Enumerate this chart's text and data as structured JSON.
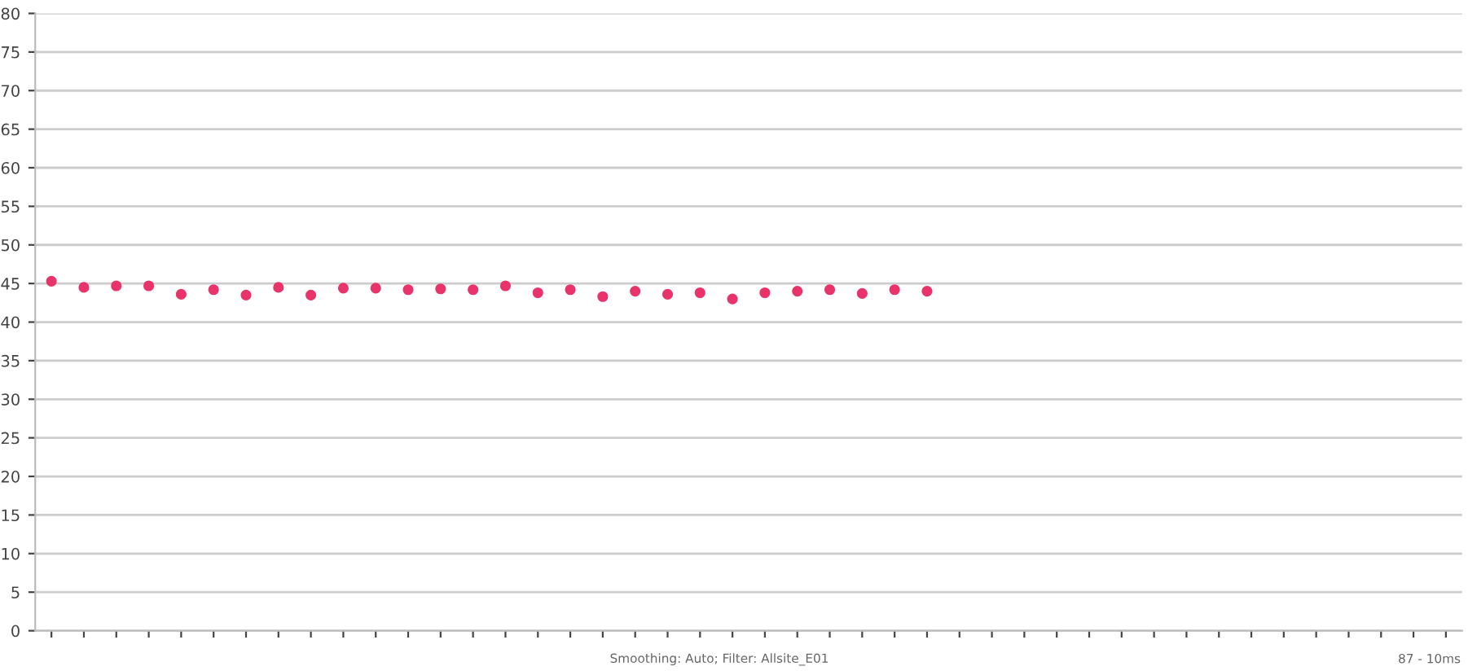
{
  "chart_data": {
    "type": "scatter",
    "categories": [
      null,
      null,
      null,
      null,
      null,
      null,
      null,
      null,
      null,
      null,
      null,
      null,
      null,
      null,
      null,
      null,
      null,
      null,
      null,
      null,
      null,
      null,
      null,
      null,
      null,
      null,
      null,
      null,
      null,
      null,
      null,
      null,
      null,
      null,
      null,
      null,
      null,
      null,
      null,
      null,
      null,
      null,
      null,
      null
    ],
    "series": [
      {
        "color": "#e8336b",
        "values": [
          45.3,
          44.5,
          44.7,
          44.7,
          43.6,
          44.2,
          43.5,
          44.5,
          43.5,
          44.4,
          44.4,
          44.2,
          44.3,
          44.2,
          44.7,
          43.8,
          44.2,
          43.3,
          44.0,
          43.6,
          43.8,
          43.0,
          43.8,
          44.0,
          44.2,
          43.7,
          44.2,
          44.0,
          null,
          null,
          null,
          null,
          null,
          null,
          null,
          null,
          null,
          null,
          null,
          null,
          null,
          null,
          null,
          null
        ]
      }
    ],
    "ylim": [
      0,
      80
    ],
    "yticks": [
      0,
      5,
      10,
      15,
      20,
      25,
      30,
      35,
      40,
      45,
      50,
      55,
      60,
      65,
      70,
      75,
      80
    ],
    "grid": "y",
    "marker": "circle",
    "tick_labels": "y",
    "annotations": [
      "Smoothing: Auto; Filter: Allsite_E01",
      "87 - 10ms"
    ]
  }
}
